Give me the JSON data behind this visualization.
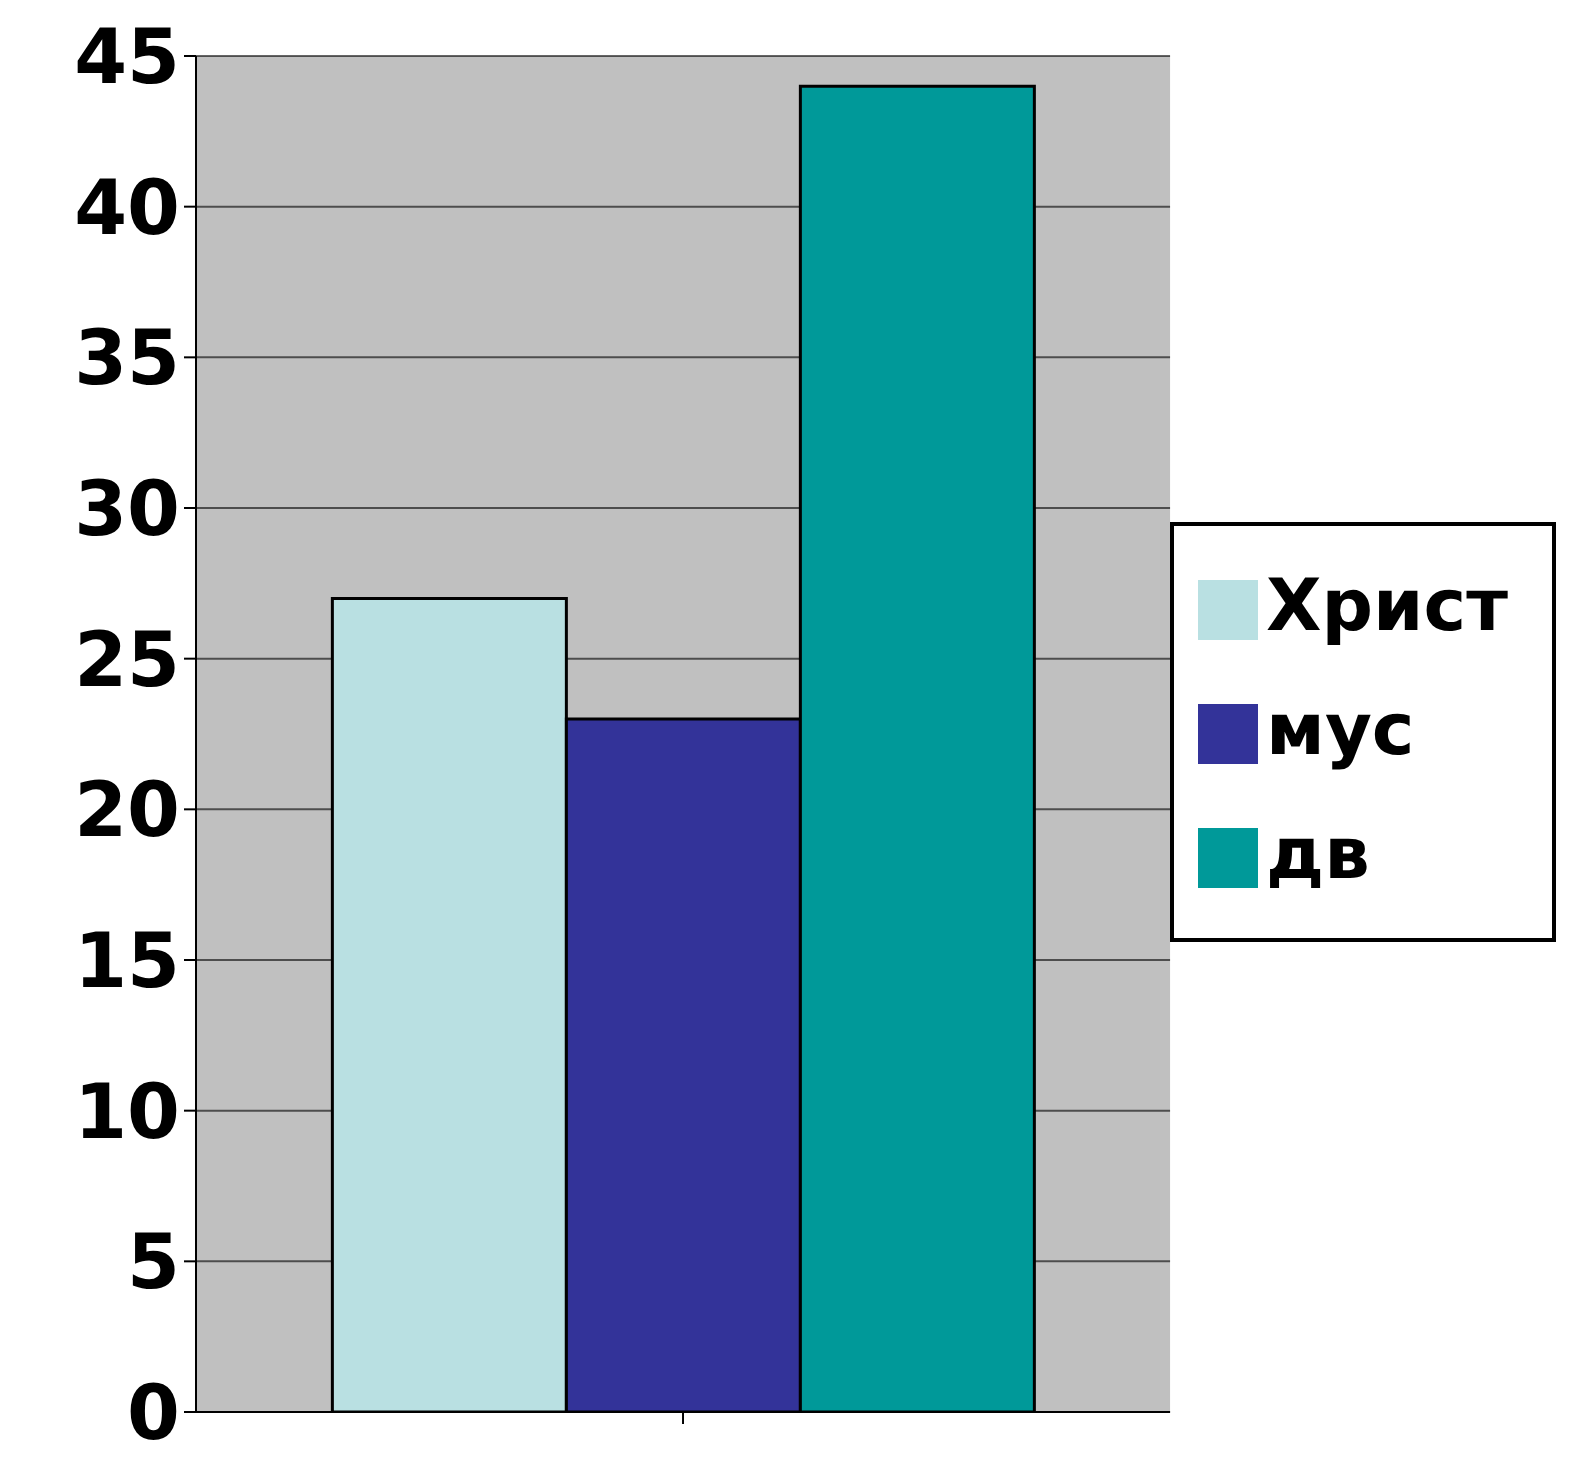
{
  "chart_data": {
    "type": "bar",
    "categories": [
      null
    ],
    "series": [
      {
        "name": "Христ",
        "color": "#b9e0e2",
        "values": [
          27
        ]
      },
      {
        "name": "мус",
        "color": "#333399",
        "values": [
          23
        ]
      },
      {
        "name": "дв",
        "color": "#009999",
        "values": [
          44
        ]
      }
    ],
    "ylim": [
      0,
      45
    ],
    "yticks": [
      0,
      5,
      10,
      15,
      20,
      25,
      30,
      35,
      40,
      45
    ],
    "grid": "y",
    "legend": "right"
  }
}
